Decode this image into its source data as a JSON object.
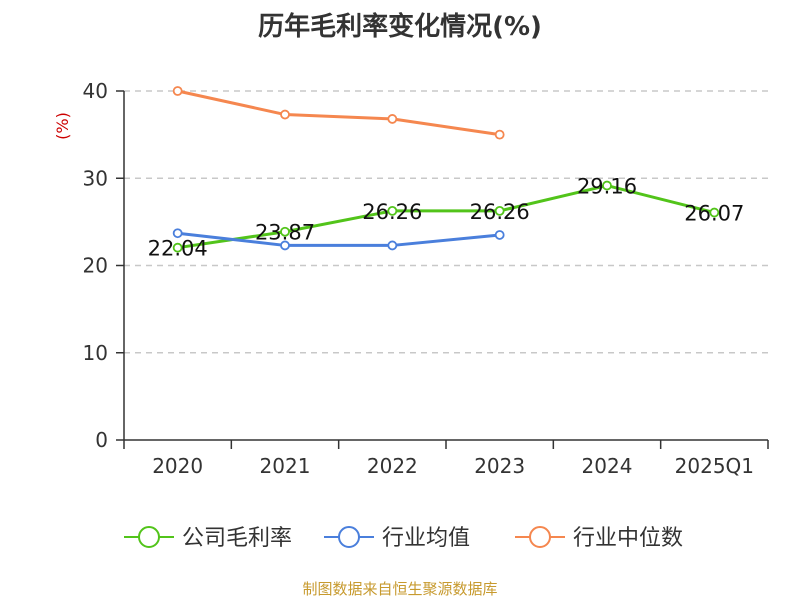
{
  "chart_data": {
    "type": "line",
    "title": "历年毛利率变化情况(%)",
    "ylabel": "(%)",
    "xlabel": "",
    "categories": [
      "2020",
      "2021",
      "2022",
      "2023",
      "2024",
      "2025Q1"
    ],
    "ylim": [
      0,
      40
    ],
    "yticks": [
      "0",
      "10",
      "20",
      "30",
      "40"
    ],
    "grid": true,
    "legend_position": "bottom",
    "series": [
      {
        "name": "公司毛利率",
        "color": "#52c41a",
        "values": [
          22.04,
          23.87,
          26.26,
          26.26,
          29.16,
          26.07
        ],
        "labels": [
          "22.04",
          "23.87",
          "26.26",
          "26.26",
          "29.16",
          "26.07"
        ]
      },
      {
        "name": "行业均值",
        "color": "#4a7fdc",
        "values": [
          23.7,
          22.3,
          22.3,
          23.5,
          null,
          null
        ]
      },
      {
        "name": "行业中位数",
        "color": "#f5874f",
        "values": [
          40.0,
          37.3,
          36.8,
          35.0,
          null,
          null
        ]
      }
    ]
  },
  "source": "制图数据来自恒生聚源数据库"
}
